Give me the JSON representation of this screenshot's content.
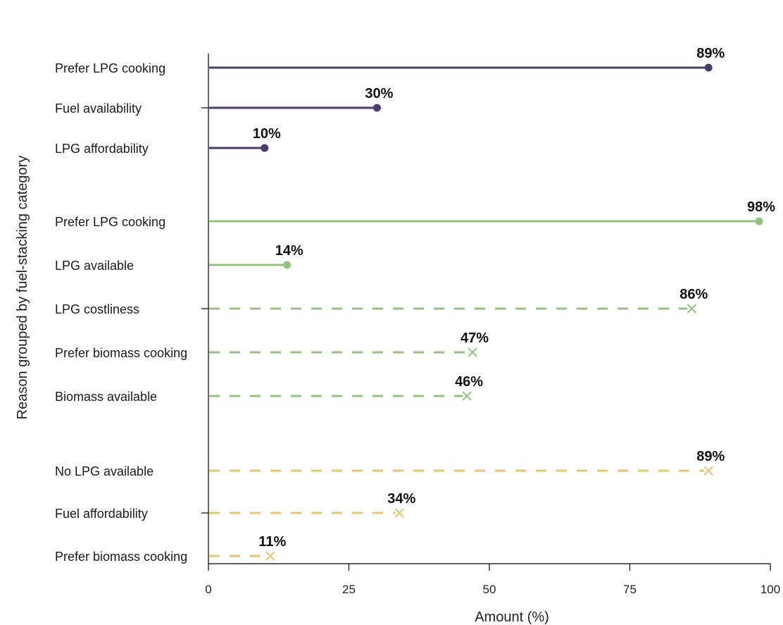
{
  "chart_data": {
    "type": "lollipop",
    "xlabel": "Amount (%)",
    "ylabel": "Reason grouped by fuel-stacking category",
    "xlim": [
      0,
      100
    ],
    "xticks": [
      0,
      25,
      50,
      75,
      100
    ],
    "colors": {
      "purple": "#4b3b6b",
      "green": "#93c47d",
      "yellow": "#e8c46a"
    },
    "groups": [
      {
        "color": "purple",
        "items": [
          {
            "label": "Prefer LPG cooking",
            "value": 89,
            "value_label": "89%",
            "style": "solid"
          },
          {
            "label": "Fuel availability",
            "value": 30,
            "value_label": "30%",
            "style": "solid"
          },
          {
            "label": "LPG affordability",
            "value": 10,
            "value_label": "10%",
            "style": "solid"
          }
        ]
      },
      {
        "color": "green",
        "items": [
          {
            "label": "Prefer LPG cooking",
            "value": 98,
            "value_label": "98%",
            "style": "solid"
          },
          {
            "label": "LPG available",
            "value": 14,
            "value_label": "14%",
            "style": "solid"
          },
          {
            "label": "LPG costliness",
            "value": 86,
            "value_label": "86%",
            "style": "dashed"
          },
          {
            "label": "Prefer biomass cooking",
            "value": 47,
            "value_label": "47%",
            "style": "dashed"
          },
          {
            "label": "Biomass available",
            "value": 46,
            "value_label": "46%",
            "style": "dashed"
          }
        ]
      },
      {
        "color": "yellow",
        "items": [
          {
            "label": "No LPG available",
            "value": 89,
            "value_label": "89%",
            "style": "dashed"
          },
          {
            "label": "Fuel affordability",
            "value": 34,
            "value_label": "34%",
            "style": "dashed"
          },
          {
            "label": "Prefer biomass cooking",
            "value": 11,
            "value_label": "11%",
            "style": "dashed"
          }
        ]
      }
    ]
  }
}
